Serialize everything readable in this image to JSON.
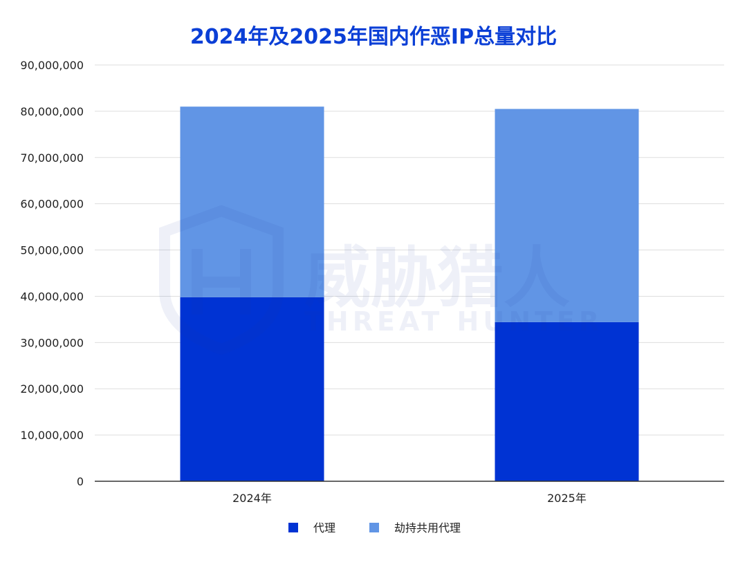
{
  "chart_data": {
    "type": "bar",
    "stacked": true,
    "title": "2024年及2025年国内作恶IP总量对比",
    "categories": [
      "2024年",
      "2025年"
    ],
    "series": [
      {
        "name": "代理",
        "values": [
          39800000,
          34400000
        ],
        "color": "#0033D3"
      },
      {
        "name": "劫持共用代理",
        "values": [
          41200000,
          46100000
        ],
        "color": "#6195E5"
      }
    ],
    "ylim": [
      0,
      90000000
    ],
    "yticks": [
      "0",
      "10,000,000",
      "20,000,000",
      "30,000,000",
      "40,000,000",
      "50,000,000",
      "60,000,000",
      "70,000,000",
      "80,000,000",
      "90,000,000"
    ],
    "ytick_values": [
      0,
      10000000,
      20000000,
      30000000,
      40000000,
      50000000,
      60000000,
      70000000,
      80000000,
      90000000
    ],
    "grid": true,
    "legend_position": "bottom-center"
  },
  "watermark": {
    "brand_cn": "威胁猎人",
    "brand_en": "THREAT HUNTER",
    "icon": "shield-h-logo"
  },
  "colors": {
    "title": "#0B3FD6",
    "grid": "#DDDDDD",
    "axis": "#333333"
  }
}
